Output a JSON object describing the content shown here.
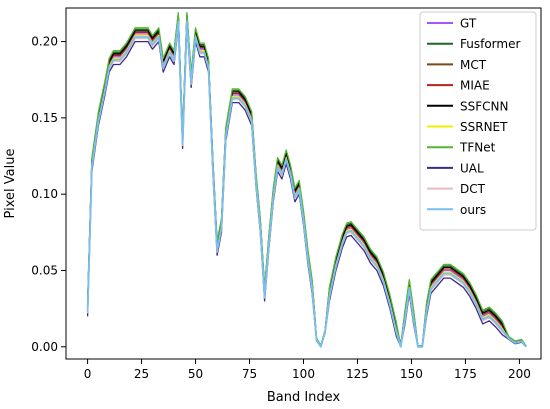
{
  "chart_data": {
    "type": "line",
    "title": "",
    "xlabel": "Band Index",
    "ylabel": "Pixel Value",
    "xlim": [
      -10,
      210
    ],
    "ylim": [
      -0.008,
      0.222
    ],
    "xticks": [
      0,
      25,
      50,
      75,
      100,
      125,
      150,
      175,
      200
    ],
    "yticks": [
      0.0,
      0.05,
      0.1,
      0.15,
      0.2
    ],
    "ytick_labels": [
      "0.00",
      "0.05",
      "0.10",
      "0.15",
      "0.20"
    ],
    "grid": false,
    "legend_position": "top-right",
    "reference": {
      "x": [
        0,
        2,
        5,
        8,
        10,
        12,
        15,
        18,
        20,
        22,
        25,
        28,
        30,
        33,
        35,
        38,
        40,
        42,
        44,
        46,
        48,
        50,
        52,
        54,
        56,
        58,
        60,
        62,
        64,
        67,
        70,
        73,
        76,
        78,
        80,
        82,
        84,
        86,
        88,
        90,
        92,
        94,
        96,
        98,
        100,
        102,
        104,
        106,
        108,
        110,
        112,
        115,
        118,
        120,
        122,
        125,
        128,
        131,
        134,
        137,
        140,
        143,
        145,
        147,
        149,
        151,
        153,
        155,
        157,
        159,
        162,
        165,
        168,
        171,
        174,
        177,
        180,
        183,
        186,
        189,
        192,
        195,
        198,
        201,
        203
      ],
      "values": [
        0.025,
        0.12,
        0.15,
        0.17,
        0.185,
        0.19,
        0.19,
        0.195,
        0.2,
        0.205,
        0.205,
        0.205,
        0.2,
        0.205,
        0.185,
        0.195,
        0.19,
        0.215,
        0.135,
        0.215,
        0.175,
        0.205,
        0.195,
        0.195,
        0.185,
        0.12,
        0.065,
        0.08,
        0.14,
        0.165,
        0.165,
        0.16,
        0.15,
        0.11,
        0.08,
        0.035,
        0.07,
        0.1,
        0.12,
        0.115,
        0.125,
        0.115,
        0.1,
        0.105,
        0.085,
        0.06,
        0.04,
        0.005,
        0.0,
        0.01,
        0.035,
        0.055,
        0.07,
        0.077,
        0.078,
        0.073,
        0.068,
        0.06,
        0.055,
        0.045,
        0.03,
        0.012,
        0.0,
        0.02,
        0.04,
        0.02,
        0.0,
        0.0,
        0.025,
        0.04,
        0.045,
        0.05,
        0.05,
        0.047,
        0.044,
        0.038,
        0.03,
        0.02,
        0.022,
        0.018,
        0.013,
        0.006,
        0.003,
        0.004,
        0.0
      ]
    },
    "series": [
      {
        "name": "GT",
        "color": "#a855f7",
        "offset": 0.0
      },
      {
        "name": "Fusformer",
        "color": "#1b6b1b",
        "offset": 0.003
      },
      {
        "name": "MCT",
        "color": "#7a4a16",
        "offset": 0.002
      },
      {
        "name": "MIAE",
        "color": "#b22222",
        "offset": 0.001
      },
      {
        "name": "SSFCNN",
        "color": "#000000",
        "offset": 0.002
      },
      {
        "name": "SSRNET",
        "color": "#eef000",
        "offset": -0.001
      },
      {
        "name": "TFNet",
        "color": "#55b531",
        "offset": 0.004
      },
      {
        "name": "UAL",
        "color": "#3b2a8a",
        "offset": -0.005
      },
      {
        "name": "DCT",
        "color": "#e8bcbc",
        "offset": -0.003
      },
      {
        "name": "ours",
        "color": "#79bff0",
        "offset": -0.002
      }
    ]
  }
}
